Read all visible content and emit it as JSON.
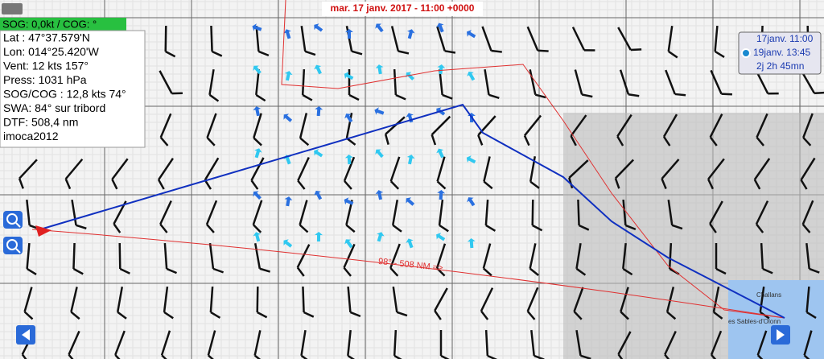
{
  "status_bar": "SOG: 0,0kt / COG:  °",
  "date_title": "mar. 17 janv. 2017 - 11:00 +0000",
  "info": [
    "Lat :  47°37.579'N",
    "Lon: 014°25.420'W",
    "Vent:  12 kts 157°",
    "Press: 1031 hPa",
    "SOG/COG : 12,8 kts 74°",
    "SWA: 84° sur tribord",
    "DTF: 508,4 nm",
    "imoca2012"
  ],
  "time_panel": {
    "start": "17janv. 11:00",
    "end": "19janv. 13:45",
    "duration": "2j 2h 45mn"
  },
  "route_label": "98° - 508 NM =>",
  "map_labels": [
    "Challans",
    "es Sables-d'Olonn"
  ]
}
